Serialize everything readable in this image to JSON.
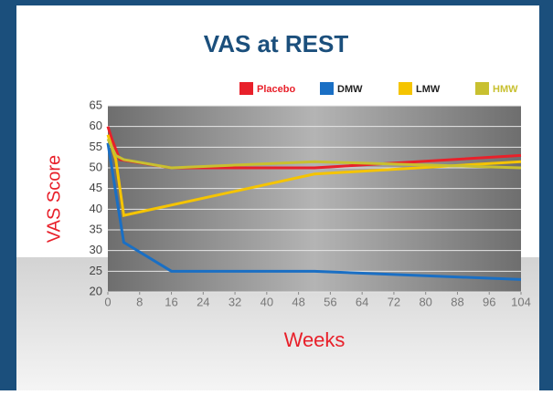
{
  "chart_data": {
    "type": "line",
    "title": "VAS at REST",
    "x_label": "Weeks",
    "y_label": "VAS Score",
    "xlim": [
      0,
      104
    ],
    "xticks": [
      0,
      8,
      16,
      24,
      32,
      40,
      48,
      56,
      64,
      72,
      80,
      88,
      96,
      104
    ],
    "ylim": [
      20,
      65
    ],
    "yticks": [
      20,
      25,
      30,
      35,
      40,
      45,
      50,
      55,
      60,
      65
    ],
    "grid": true,
    "series": [
      {
        "name": "Placebo",
        "color": "#e8202a",
        "x": [
          0,
          1,
          3,
          16,
          52,
          104
        ],
        "values": [
          60,
          57,
          52,
          50,
          50,
          53
        ]
      },
      {
        "name": "DMW",
        "color": "#1a6fc4",
        "x": [
          0,
          4,
          16,
          52,
          104
        ],
        "values": [
          56,
          32,
          25,
          25,
          23
        ]
      },
      {
        "name": "LMW",
        "color": "#f5c400",
        "x": [
          0,
          2,
          4,
          52,
          104
        ],
        "values": [
          58,
          52,
          38.5,
          48.5,
          51.5
        ]
      },
      {
        "name": "HMW",
        "color": "#c8c030",
        "x": [
          0,
          2,
          4,
          16,
          52,
          104
        ],
        "values": [
          57,
          53,
          52,
          50,
          51.5,
          50
        ]
      }
    ]
  }
}
